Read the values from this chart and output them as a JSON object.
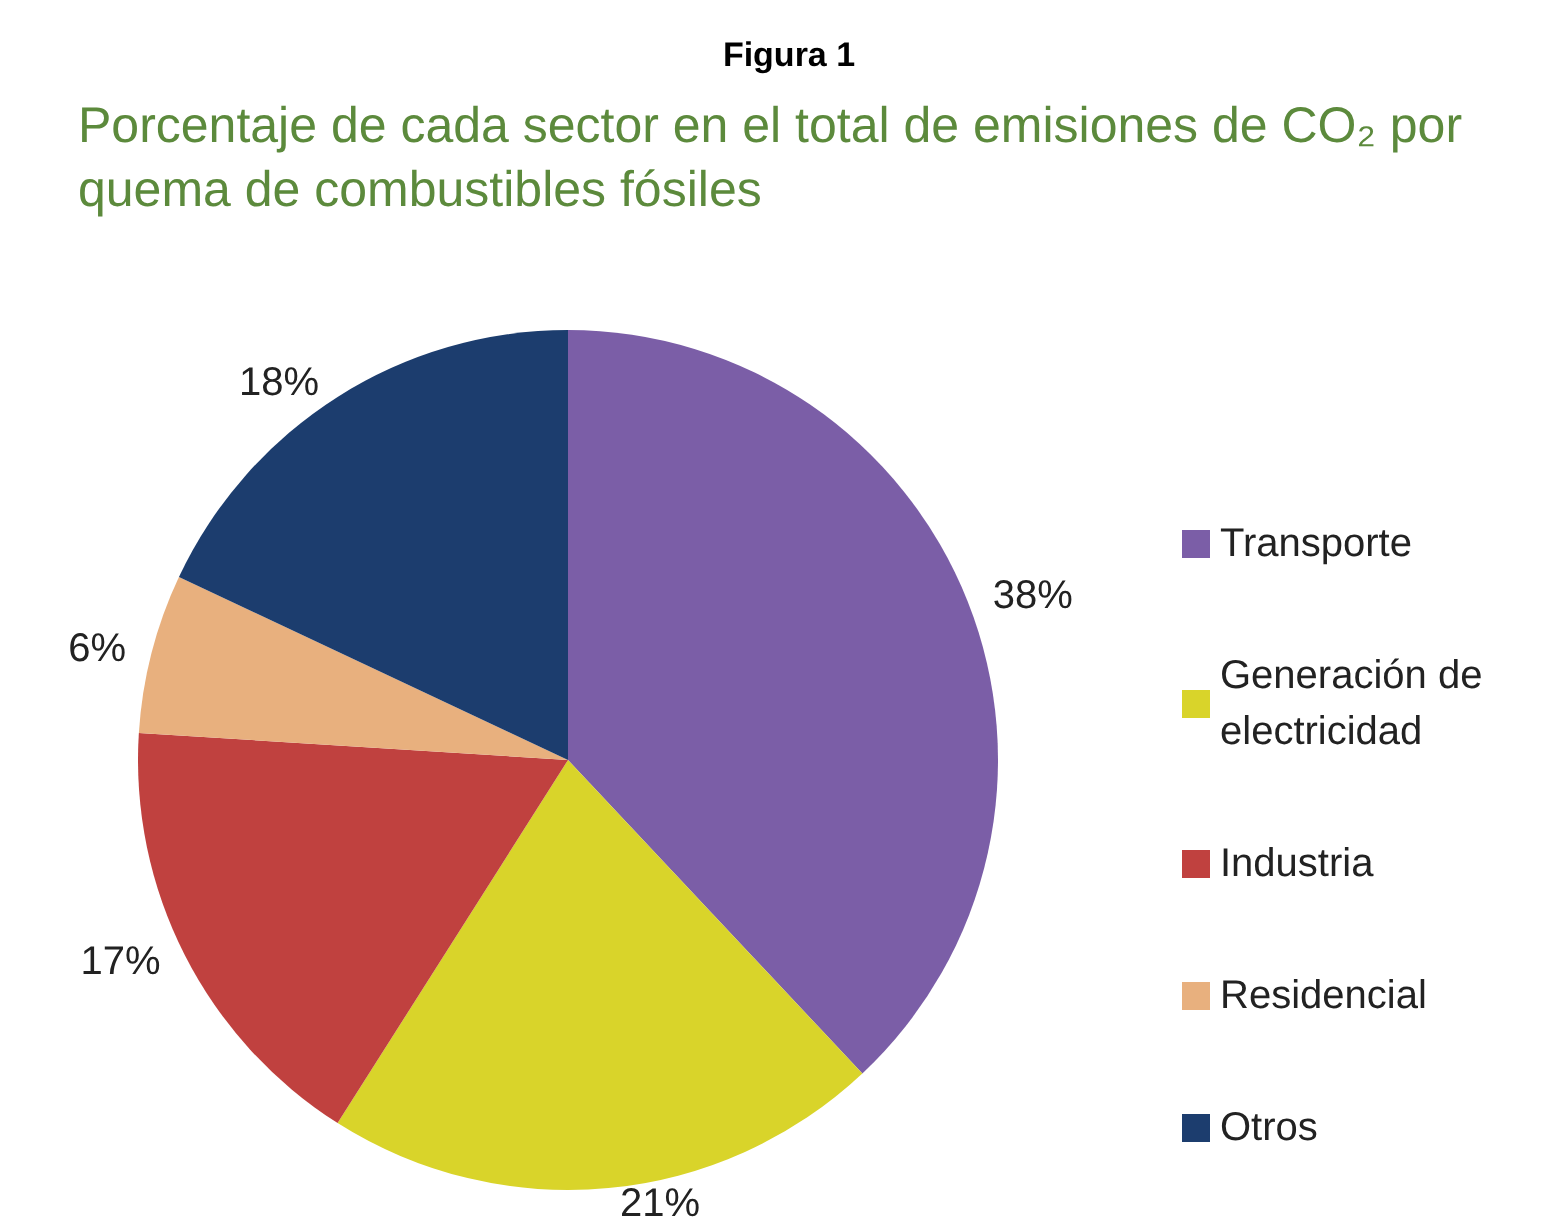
{
  "chart_data": {
    "type": "pie",
    "title": "Figura 1",
    "subtitle": "Porcentaje de cada sector en el total de emisiones de CO₂ por quema de combustibles fósiles",
    "categories": [
      "Transporte",
      "Generación de electricidad",
      "Industria",
      "Residencial",
      "Otros"
    ],
    "values": [
      38,
      21,
      17,
      6,
      18
    ],
    "value_labels": [
      "38%",
      "21%",
      "17%",
      "6%",
      "18%"
    ],
    "colors": [
      "#7b5ea7",
      "#d9d42a",
      "#c0413f",
      "#e8b07e",
      "#1c3d6e"
    ],
    "legend": "right"
  }
}
